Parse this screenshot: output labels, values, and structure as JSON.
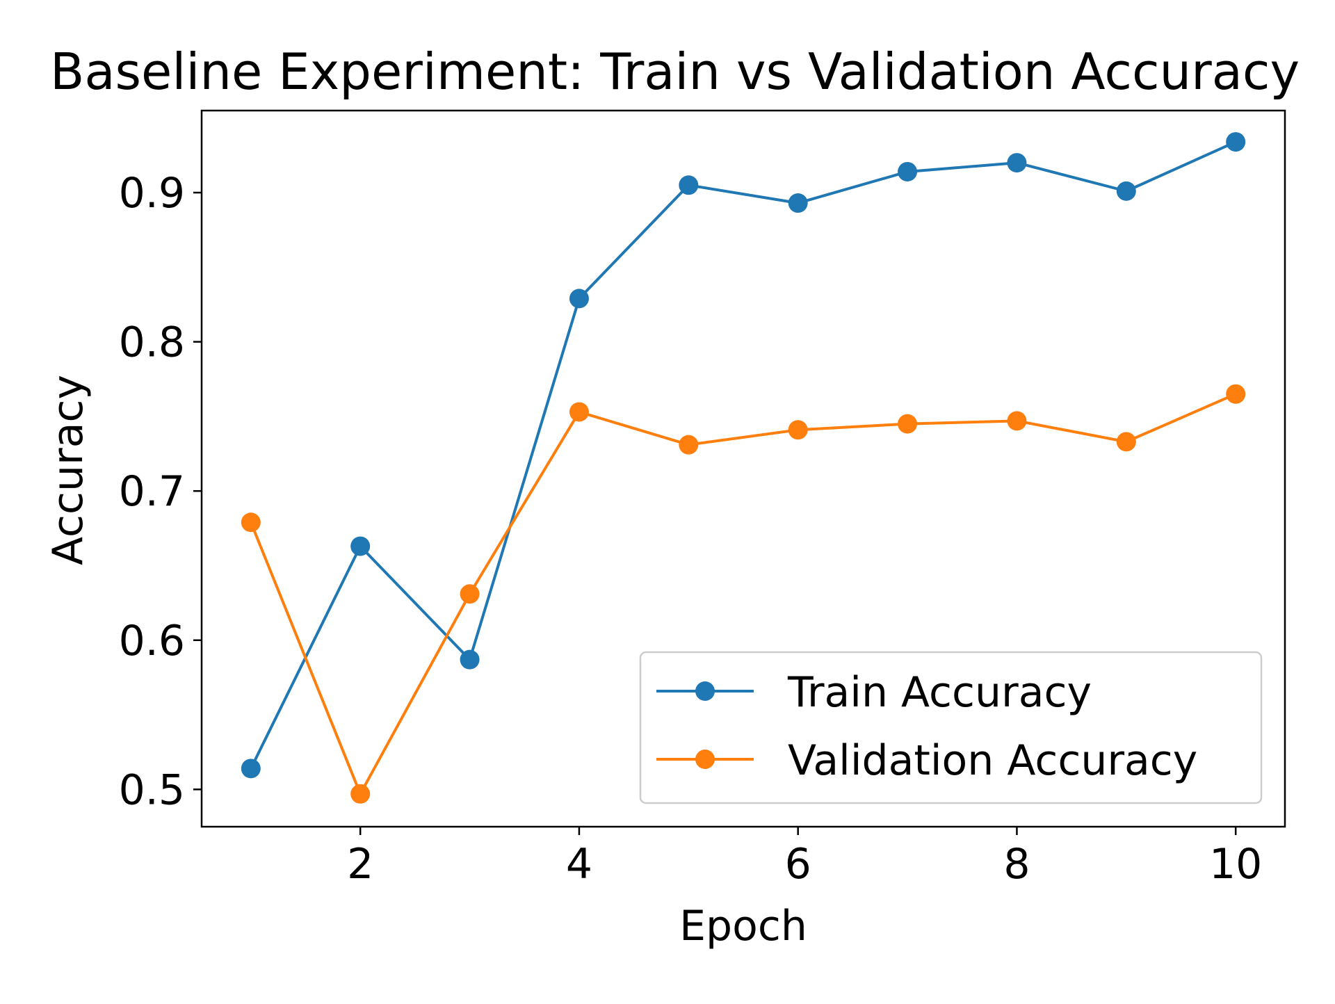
{
  "chart_data": {
    "type": "line",
    "title": "Baseline Experiment: Train vs Validation Accuracy",
    "xlabel": "Epoch",
    "ylabel": "Accuracy",
    "x": [
      1,
      2,
      3,
      4,
      5,
      6,
      7,
      8,
      9,
      10
    ],
    "xlim": [
      0.55,
      10.45
    ],
    "ylim": [
      0.475,
      0.955
    ],
    "xticks": [
      2,
      4,
      6,
      8,
      10
    ],
    "xtick_labels": [
      "2",
      "4",
      "6",
      "8",
      "10"
    ],
    "yticks": [
      0.5,
      0.6,
      0.7,
      0.8,
      0.9
    ],
    "ytick_labels": [
      "0.5",
      "0.6",
      "0.7",
      "0.8",
      "0.9"
    ],
    "grid": false,
    "legend_position": "lower-right",
    "series": [
      {
        "name": "Train Accuracy",
        "color": "#1f77b4",
        "marker": "circle",
        "values": [
          0.514,
          0.663,
          0.587,
          0.829,
          0.905,
          0.893,
          0.914,
          0.92,
          0.901,
          0.934
        ]
      },
      {
        "name": "Validation Accuracy",
        "color": "#ff7f0e",
        "marker": "circle",
        "values": [
          0.679,
          0.497,
          0.631,
          0.753,
          0.731,
          0.741,
          0.745,
          0.747,
          0.733,
          0.765
        ]
      }
    ]
  }
}
